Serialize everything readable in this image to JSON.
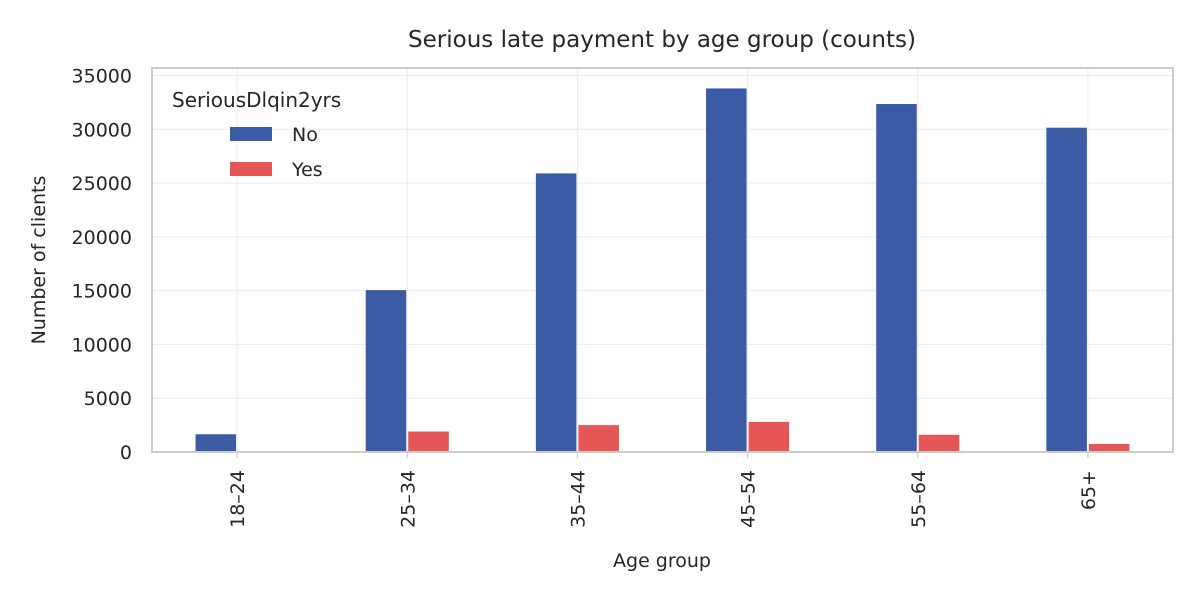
{
  "chart_data": {
    "type": "bar",
    "title": "Serious late payment by age group (counts)",
    "xlabel": "Age group",
    "ylabel": "Number of clients",
    "categories": [
      "18–24",
      "25–34",
      "35–44",
      "45–54",
      "55–64",
      "65+"
    ],
    "series": [
      {
        "name": "No",
        "color": "#3b5ba5",
        "values": [
          1650,
          15050,
          25900,
          33800,
          32350,
          30150
        ]
      },
      {
        "name": "Yes",
        "color": "#e45756",
        "values": [
          50,
          1900,
          2500,
          2800,
          1600,
          750
        ]
      }
    ],
    "ylim": [
      0,
      35700
    ],
    "yticks": [
      0,
      5000,
      10000,
      15000,
      20000,
      25000,
      30000,
      35000
    ],
    "grid": true,
    "legend": {
      "title": "SeriousDlqin2yrs",
      "placement": "top-left"
    }
  }
}
